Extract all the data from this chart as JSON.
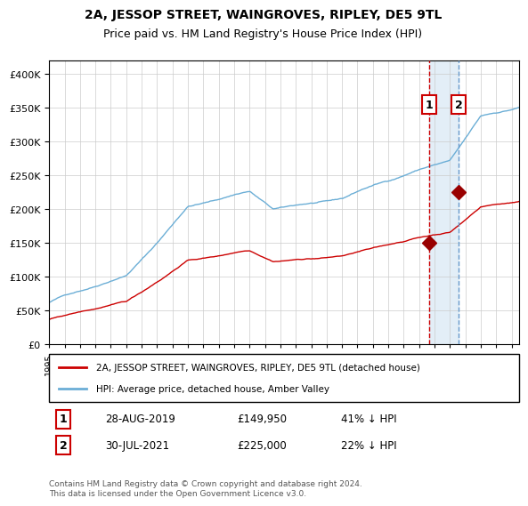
{
  "title": "2A, JESSOP STREET, WAINGROVES, RIPLEY, DE5 9TL",
  "subtitle": "Price paid vs. HM Land Registry's House Price Index (HPI)",
  "legend_line1": "2A, JESSOP STREET, WAINGROVES, RIPLEY, DE5 9TL (detached house)",
  "legend_line2": "HPI: Average price, detached house, Amber Valley",
  "annotation1_date": "28-AUG-2019",
  "annotation1_price": "£149,950",
  "annotation1_pct": "41% ↓ HPI",
  "annotation2_date": "30-JUL-2021",
  "annotation2_price": "£225,000",
  "annotation2_pct": "22% ↓ HPI",
  "footer": "Contains HM Land Registry data © Crown copyright and database right 2024.\nThis data is licensed under the Open Government Licence v3.0.",
  "hpi_color": "#6baed6",
  "price_color": "#cc0000",
  "marker_color": "#990000",
  "vline1_color": "#cc0000",
  "vline2_color": "#6699cc",
  "shade_color": "#d8e8f5",
  "annotation_box_color": "#cc0000",
  "ylim": [
    0,
    420000
  ],
  "yticks": [
    0,
    50000,
    100000,
    150000,
    200000,
    250000,
    300000,
    350000,
    400000
  ],
  "year_start": 1995,
  "year_end": 2025,
  "purchase1_year": 2019.66,
  "purchase1_value": 149950,
  "purchase2_year": 2021.58,
  "purchase2_value": 225000
}
